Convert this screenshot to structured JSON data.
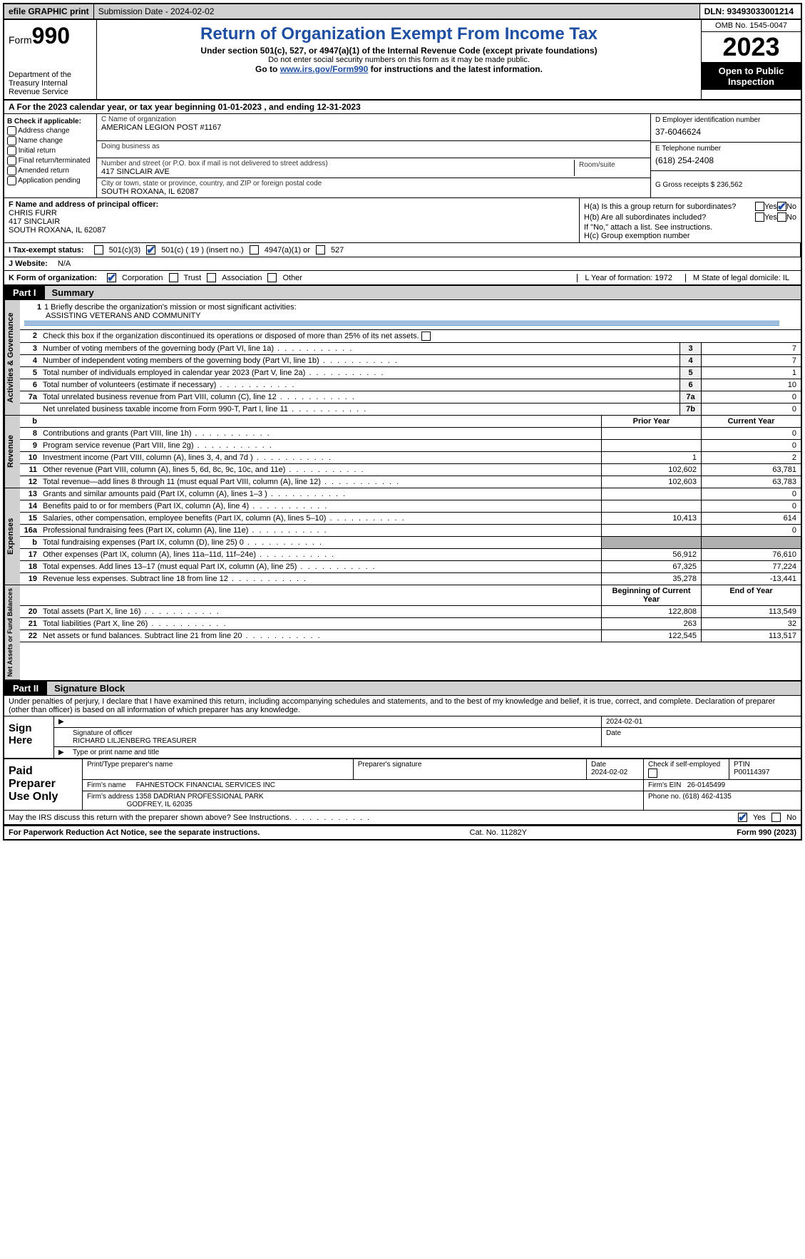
{
  "topbar": {
    "efile": "efile GRAPHIC print",
    "subdate": "Submission Date - 2024-02-02",
    "dln": "DLN: 93493033001214"
  },
  "header": {
    "form_prefix": "Form",
    "form_num": "990",
    "dept": "Department of the Treasury Internal Revenue Service",
    "title": "Return of Organization Exempt From Income Tax",
    "subtitle": "Under section 501(c), 527, or 4947(a)(1) of the Internal Revenue Code (except private foundations)",
    "note1": "Do not enter social security numbers on this form as it may be made public.",
    "note2_pre": "Go to ",
    "note2_link": "www.irs.gov/Form990",
    "note2_post": " for instructions and the latest information.",
    "omb": "OMB No. 1545-0047",
    "year": "2023",
    "open": "Open to Public Inspection"
  },
  "rowA": "A For the 2023 calendar year, or tax year beginning 01-01-2023    , and ending 12-31-2023",
  "boxB": {
    "title": "B Check if applicable:",
    "opts": [
      "Address change",
      "Name change",
      "Initial return",
      "Final return/terminated",
      "Amended return",
      "Application pending"
    ]
  },
  "boxC": {
    "name_lbl": "C Name of organization",
    "name": "AMERICAN LEGION POST #1167",
    "dba_lbl": "Doing business as",
    "dba": "",
    "addr_lbl": "Number and street (or P.O. box if mail is not delivered to street address)",
    "room_lbl": "Room/suite",
    "addr": "417 SINCLAIR AVE",
    "city_lbl": "City or town, state or province, country, and ZIP or foreign postal code",
    "city": "SOUTH ROXANA, IL  62087"
  },
  "boxD": {
    "ein_lbl": "D Employer identification number",
    "ein": "37-6046624",
    "tel_lbl": "E Telephone number",
    "tel": "(618) 254-2408",
    "gross_lbl": "G Gross receipts $ ",
    "gross": "236,562"
  },
  "boxF": {
    "lbl": "F  Name and address of principal officer:",
    "name": "CHRIS FURR",
    "addr1": "417 SINCLAIR",
    "addr2": "SOUTH ROXANA, IL  62087"
  },
  "boxH": {
    "ha_lbl": "H(a)  Is this a group return for subordinates?",
    "hb_lbl": "H(b)  Are all subordinates included?",
    "hb_note": "If \"No,\" attach a list. See instructions.",
    "hc_lbl": "H(c)  Group exemption number",
    "yes": "Yes",
    "no": "No"
  },
  "rowI": {
    "lbl": "I    Tax-exempt status:",
    "opt1": "501(c)(3)",
    "opt2": "501(c) ( 19 ) (insert no.)",
    "opt3": "4947(a)(1) or",
    "opt4": "527"
  },
  "rowJ": {
    "lbl": "J    Website:",
    "val": "N/A"
  },
  "rowK": {
    "lbl": "K Form of organization:",
    "opts": [
      "Corporation",
      "Trust",
      "Association",
      "Other"
    ],
    "L": "L Year of formation: 1972",
    "M": "M State of legal domicile: IL"
  },
  "part1": {
    "num": "Part I",
    "title": "Summary"
  },
  "mission": {
    "lbl": "1    Briefly describe the organization's mission or most significant activities:",
    "val": "ASSISTING VETERANS AND COMMUNITY"
  },
  "line2": "Check this box         if the organization discontinued its operations or disposed of more than 25% of its net assets.",
  "gov_rows": [
    {
      "n": "3",
      "t": "Number of voting members of the governing body (Part VI, line 1a)",
      "b": "3",
      "v": "7"
    },
    {
      "n": "4",
      "t": "Number of independent voting members of the governing body (Part VI, line 1b)",
      "b": "4",
      "v": "7"
    },
    {
      "n": "5",
      "t": "Total number of individuals employed in calendar year 2023 (Part V, line 2a)",
      "b": "5",
      "v": "1"
    },
    {
      "n": "6",
      "t": "Total number of volunteers (estimate if necessary)",
      "b": "6",
      "v": "10"
    },
    {
      "n": "7a",
      "t": "Total unrelated business revenue from Part VIII, column (C), line 12",
      "b": "7a",
      "v": "0"
    },
    {
      "n": "",
      "t": "Net unrelated business taxable income from Form 990-T, Part I, line 11",
      "b": "7b",
      "v": "0"
    }
  ],
  "rev_hdr": {
    "n": "b",
    "py": "Prior Year",
    "cy": "Current Year"
  },
  "rev_rows": [
    {
      "n": "8",
      "t": "Contributions and grants (Part VIII, line 1h)",
      "p": "",
      "c": "0"
    },
    {
      "n": "9",
      "t": "Program service revenue (Part VIII, line 2g)",
      "p": "",
      "c": "0"
    },
    {
      "n": "10",
      "t": "Investment income (Part VIII, column (A), lines 3, 4, and 7d )",
      "p": "1",
      "c": "2"
    },
    {
      "n": "11",
      "t": "Other revenue (Part VIII, column (A), lines 5, 6d, 8c, 9c, 10c, and 11e)",
      "p": "102,602",
      "c": "63,781"
    },
    {
      "n": "12",
      "t": "Total revenue—add lines 8 through 11 (must equal Part VIII, column (A), line 12)",
      "p": "102,603",
      "c": "63,783"
    }
  ],
  "exp_rows": [
    {
      "n": "13",
      "t": "Grants and similar amounts paid (Part IX, column (A), lines 1–3 )",
      "p": "",
      "c": "0"
    },
    {
      "n": "14",
      "t": "Benefits paid to or for members (Part IX, column (A), line 4)",
      "p": "",
      "c": "0"
    },
    {
      "n": "15",
      "t": "Salaries, other compensation, employee benefits (Part IX, column (A), lines 5–10)",
      "p": "10,413",
      "c": "614"
    },
    {
      "n": "16a",
      "t": "Professional fundraising fees (Part IX, column (A), line 11e)",
      "p": "",
      "c": "0"
    },
    {
      "n": "b",
      "t": "Total fundraising expenses (Part IX, column (D), line 25) 0",
      "p": "shade",
      "c": "shade"
    },
    {
      "n": "17",
      "t": "Other expenses (Part IX, column (A), lines 11a–11d, 11f–24e)",
      "p": "56,912",
      "c": "76,610"
    },
    {
      "n": "18",
      "t": "Total expenses. Add lines 13–17 (must equal Part IX, column (A), line 25)",
      "p": "67,325",
      "c": "77,224"
    },
    {
      "n": "19",
      "t": "Revenue less expenses. Subtract line 18 from line 12",
      "p": "35,278",
      "c": "-13,441"
    }
  ],
  "na_hdr": {
    "py": "Beginning of Current Year",
    "cy": "End of Year"
  },
  "na_rows": [
    {
      "n": "20",
      "t": "Total assets (Part X, line 16)",
      "p": "122,808",
      "c": "113,549"
    },
    {
      "n": "21",
      "t": "Total liabilities (Part X, line 26)",
      "p": "263",
      "c": "32"
    },
    {
      "n": "22",
      "t": "Net assets or fund balances. Subtract line 21 from line 20",
      "p": "122,545",
      "c": "113,517"
    }
  ],
  "part2": {
    "num": "Part II",
    "title": "Signature Block"
  },
  "sig": {
    "decl": "Under penalties of perjury, I declare that I have examined this return, including accompanying schedules and statements, and to the best of my knowledge and belief, it is true, correct, and complete. Declaration of preparer (other than officer) is based on all information of which preparer has any knowledge.",
    "sign_here": "Sign Here",
    "date1": "2024-02-01",
    "sig_lbl": "Signature of officer",
    "officer": "RICHARD LILJENBERG  TREASURER",
    "type_lbl": "Type or print name and title",
    "date_lbl": "Date"
  },
  "prep": {
    "title": "Paid Preparer Use Only",
    "print_lbl": "Print/Type preparer's name",
    "sig_lbl": "Preparer's signature",
    "date_lbl": "Date",
    "date": "2024-02-02",
    "self_lbl": "Check        if self-employed",
    "ptin_lbl": "PTIN",
    "ptin": "P00114397",
    "firm_name_lbl": "Firm's name",
    "firm_name": "FAHNESTOCK FINANCIAL SERVICES INC",
    "firm_ein_lbl": "Firm's EIN",
    "firm_ein": "26-0145499",
    "firm_addr_lbl": "Firm's address",
    "firm_addr1": "1358 DADRIAN PROFESSIONAL PARK",
    "firm_addr2": "GODFREY, IL  62035",
    "phone_lbl": "Phone no.",
    "phone": "(618) 462-4135"
  },
  "discuss": {
    "q": "May the IRS discuss this return with the preparer shown above? See Instructions.",
    "yes": "Yes",
    "no": "No"
  },
  "footer": {
    "pra": "For Paperwork Reduction Act Notice, see the separate instructions.",
    "cat": "Cat. No. 11282Y",
    "form": "Form 990 (2023)"
  },
  "vtabs": {
    "gov": "Activities & Governance",
    "rev": "Revenue",
    "exp": "Expenses",
    "na": "Net Assets or Fund Balances"
  }
}
